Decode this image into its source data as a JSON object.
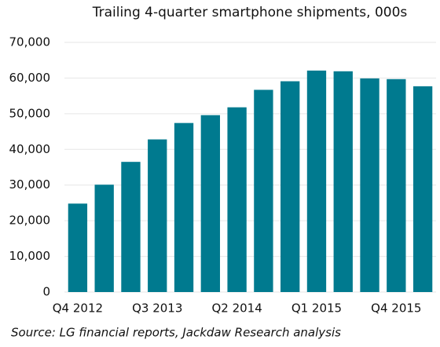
{
  "chart_data": {
    "type": "bar",
    "title": "Trailing 4-quarter smartphone shipments, 000s",
    "source": "Source: LG financial reports, Jackdaw Research analysis",
    "categories": [
      "Q4 2012",
      null,
      null,
      "Q3 2013",
      null,
      null,
      "Q2 2014",
      null,
      null,
      "Q1 2015",
      null,
      null,
      "Q4 2015",
      null
    ],
    "values": [
      24800,
      30100,
      36500,
      42800,
      47400,
      49600,
      51800,
      56700,
      59100,
      62100,
      61900,
      59900,
      59700,
      57700
    ],
    "color": "#007a8f",
    "ylim": [
      0,
      70000
    ],
    "yticks": [
      0,
      {
        "value": 10000,
        "label": "10,000"
      },
      {
        "value": 20000,
        "label": "20,000"
      },
      {
        "value": 30000,
        "label": "30,000"
      },
      {
        "value": 40000,
        "label": "40,000"
      },
      {
        "value": 50000,
        "label": "50,000"
      },
      {
        "value": 60000,
        "label": "60,000"
      },
      {
        "value": 70000,
        "label": "70,000"
      }
    ],
    "grid": true
  }
}
